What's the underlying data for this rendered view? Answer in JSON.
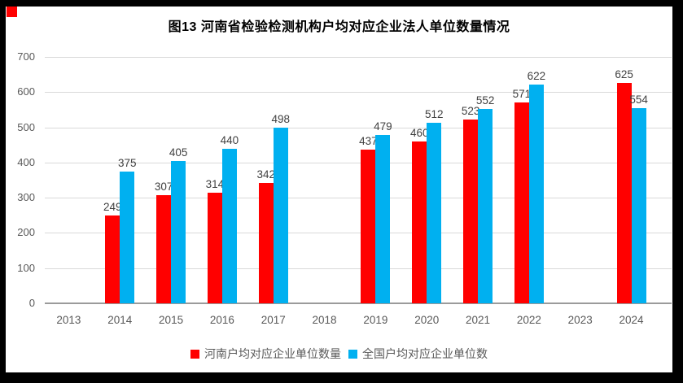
{
  "frame": {
    "color": "#000000",
    "background": "#ffffff"
  },
  "marker": {
    "color": "#ff0000"
  },
  "chart_data": {
    "type": "bar",
    "title": "图13 河南省检验检测机构户均对应企业法人单位数量情况",
    "categories": [
      "2013",
      "2014",
      "2015",
      "2016",
      "2017",
      "2018",
      "2019",
      "2020",
      "2021",
      "2022",
      "2023",
      "2024"
    ],
    "series": [
      {
        "name": "河南户均对应企业单位数量",
        "color": "#ff0000",
        "values": [
          null,
          249,
          307,
          314,
          342,
          null,
          437,
          460,
          523,
          571,
          null,
          625
        ]
      },
      {
        "name": "全国户均对应企业单位数",
        "color": "#00b0f0",
        "values": [
          null,
          375,
          405,
          440,
          498,
          null,
          479,
          512,
          552,
          622,
          null,
          554
        ]
      }
    ],
    "xlabel": "",
    "ylabel": "",
    "ylim": [
      0,
      700
    ],
    "yticks": [
      700,
      600,
      500,
      400,
      300,
      200,
      100,
      0
    ],
    "grid": true,
    "data_labels": true,
    "legend_position": "bottom",
    "styles": {
      "gridline": "#d9d9d9",
      "axis_line": "#9b9b9b",
      "tick_label_color": "#595959",
      "value_label_color": "#404040",
      "title_color": "#000000"
    }
  }
}
